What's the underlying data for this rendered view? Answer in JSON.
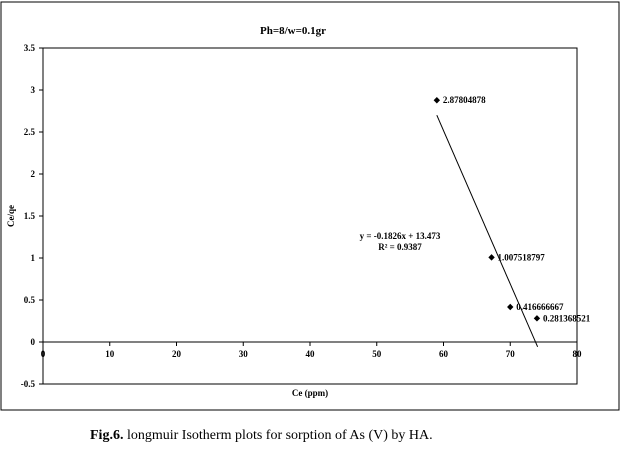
{
  "chart_data": {
    "type": "scatter",
    "title": "Ph=8/w=0.1gr",
    "xlabel": "Ce (ppm)",
    "ylabel": "Ce/qe",
    "xlim": [
      0,
      80
    ],
    "ylim": [
      -0.5,
      3.5
    ],
    "xticks": [
      "0",
      "10",
      "20",
      "30",
      "40",
      "50",
      "60",
      "70",
      "80"
    ],
    "yticks": [
      "-0.5",
      "0",
      "0.5",
      "1",
      "1.5",
      "2",
      "2.5",
      "3",
      "3.5"
    ],
    "grid": false,
    "legend": "none",
    "series": [
      {
        "points": [
          {
            "x": 59,
            "y": 2.878,
            "label": "2.87804878"
          },
          {
            "x": 67.2,
            "y": 1.0075,
            "label": "1.007518797"
          },
          {
            "x": 70,
            "y": 0.4167,
            "label": "0.416666667"
          },
          {
            "x": 74,
            "y": 0.2814,
            "label": "0.281368521"
          }
        ],
        "marker": "diamond",
        "color": "#000000"
      }
    ],
    "trendline": {
      "slope": -0.1826,
      "intercept": 13.473,
      "x_range": [
        59,
        74.1
      ],
      "equation": "y = -0.1826x + 13.473",
      "r2": "R² = 0.9387",
      "color": "#000000"
    }
  },
  "caption": {
    "fig_label": "Fig.6.",
    "text": " longmuir  Isotherm plots for sorption of As (V) by HA."
  }
}
